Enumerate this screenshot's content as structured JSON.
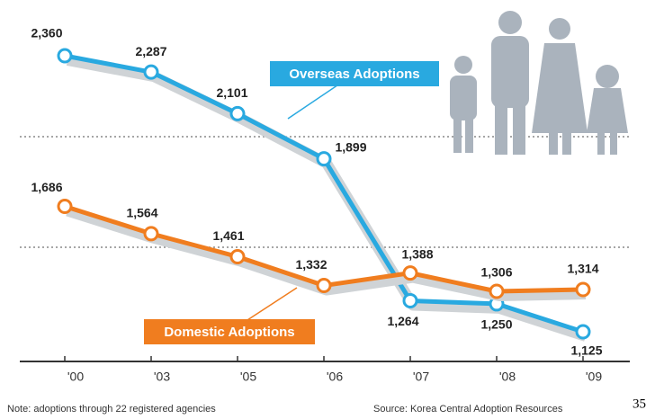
{
  "chart_data": {
    "type": "line",
    "categories": [
      "'00",
      "'03",
      "'05",
      "'06",
      "'07",
      "'08",
      "'09"
    ],
    "series": [
      {
        "name": "Overseas Adoptions",
        "color": "#29a9e0",
        "values": [
          2360,
          2287,
          2101,
          1899,
          1264,
          1250,
          1125
        ],
        "value_labels": [
          "2,360",
          "2,287",
          "2,101",
          "1,899",
          "1,264",
          "1,250",
          "1,125"
        ]
      },
      {
        "name": "Domestic Adoptions",
        "color": "#f07d1f",
        "values": [
          1686,
          1564,
          1461,
          1332,
          1388,
          1306,
          1314
        ],
        "value_labels": [
          "1,686",
          "1,564",
          "1,461",
          "1,332",
          "1,388",
          "1,306",
          "1,314"
        ]
      }
    ],
    "note": "Note: adoptions through 22 registered agencies",
    "source": "Source: Korea Central Adoption Resources",
    "page_number": "35"
  }
}
